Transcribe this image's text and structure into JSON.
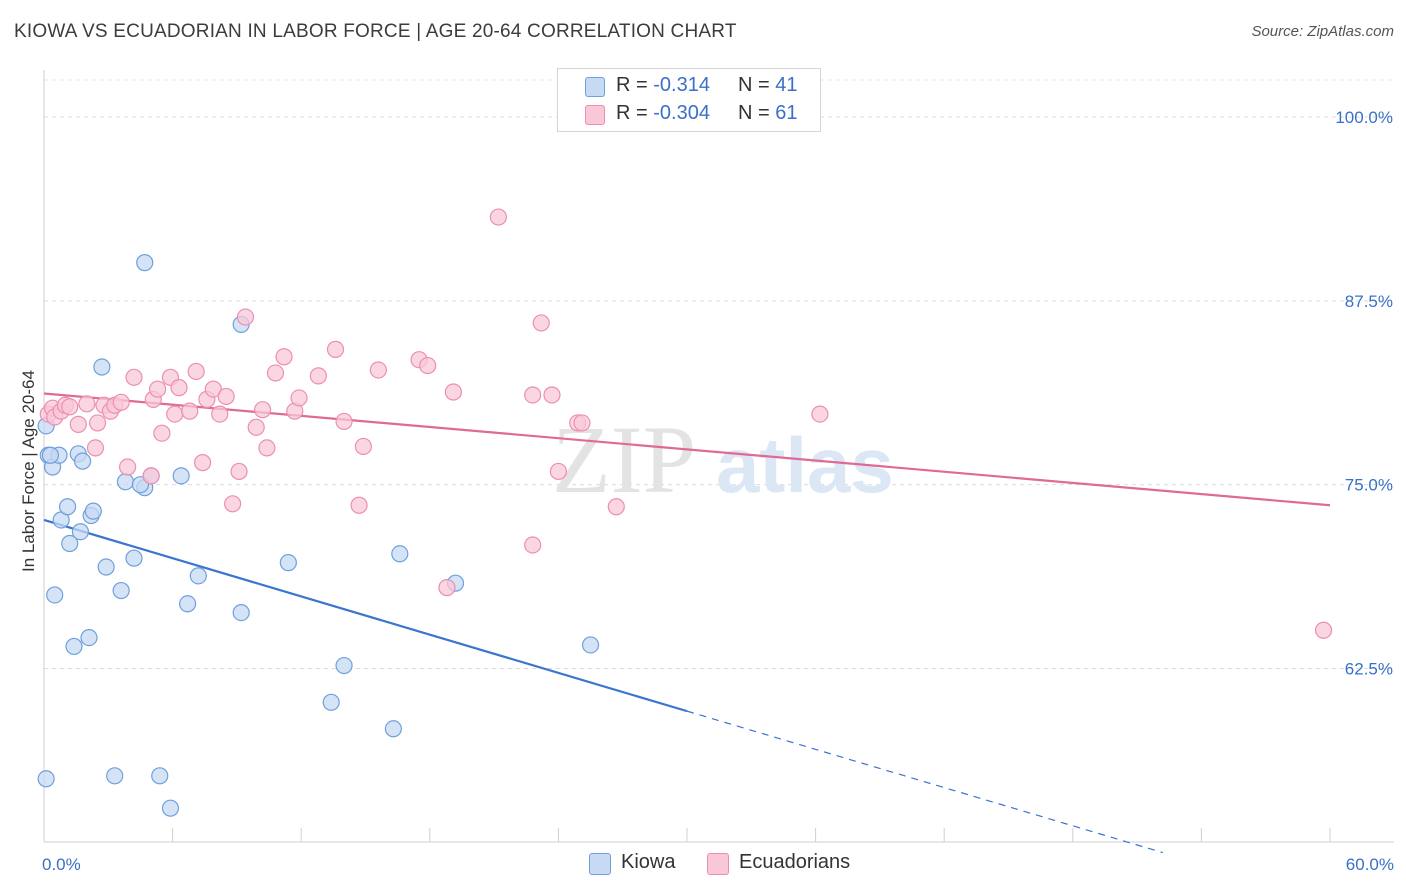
{
  "title": "KIOWA VS ECUADORIAN IN LABOR FORCE | AGE 20-64 CORRELATION CHART",
  "source": "Source: ZipAtlas.com",
  "watermark": {
    "zip": "ZIP",
    "atlas": "atlas"
  },
  "legend": {
    "r_label": "R =",
    "n_label": "N =",
    "kiowa": {
      "r": "-0.314",
      "n": "41"
    },
    "ecuadorians": {
      "r": "-0.304",
      "n": "61"
    }
  },
  "chart_data": {
    "type": "scatter",
    "title": "KIOWA VS ECUADORIAN IN LABOR FORCE | AGE 20-64 CORRELATION CHART",
    "ylabel": "In Labor Force | Age 20-64",
    "xlabel": "",
    "xlim": [
      0,
      60
    ],
    "ylim": [
      50.7,
      103.2
    ],
    "x_tick_labels": [
      {
        "value": 0,
        "label": "0.0%"
      },
      {
        "value": 60,
        "label": "60.0%"
      }
    ],
    "y_tick_labels": [
      {
        "value": 100,
        "label": "100.0%"
      },
      {
        "value": 87.5,
        "label": "87.5%"
      },
      {
        "value": 75,
        "label": "75.0%"
      },
      {
        "value": 62.5,
        "label": "62.5%"
      }
    ],
    "grid": true,
    "legend_position": "top-center",
    "series": [
      {
        "name": "Kiowa",
        "color": "#6fa0dc",
        "fill": "#c7daf3",
        "r": -0.314,
        "n": 41,
        "trend": {
          "x0": 0,
          "y0": 72.6,
          "x1": 30,
          "y1": 59.6,
          "dashed_to_x": 60
        },
        "points": [
          [
            0.1,
            79.0
          ],
          [
            0.2,
            77.0
          ],
          [
            0.4,
            76.2
          ],
          [
            0.5,
            67.5
          ],
          [
            0.7,
            77.0
          ],
          [
            0.8,
            72.6
          ],
          [
            1.1,
            73.5
          ],
          [
            1.2,
            71.0
          ],
          [
            1.4,
            64.0
          ],
          [
            1.6,
            77.1
          ],
          [
            1.7,
            71.8
          ],
          [
            1.8,
            76.6
          ],
          [
            2.1,
            64.6
          ],
          [
            2.2,
            72.9
          ],
          [
            2.3,
            73.2
          ],
          [
            2.7,
            83.0
          ],
          [
            2.9,
            69.4
          ],
          [
            3.3,
            55.2
          ],
          [
            3.6,
            67.8
          ],
          [
            3.8,
            75.2
          ],
          [
            4.2,
            70.0
          ],
          [
            4.7,
            74.8
          ],
          [
            4.7,
            90.1
          ],
          [
            5.0,
            75.6
          ],
          [
            5.4,
            55.2
          ],
          [
            5.9,
            53.0
          ],
          [
            6.4,
            75.6
          ],
          [
            6.7,
            66.9
          ],
          [
            7.2,
            68.8
          ],
          [
            9.2,
            66.3
          ],
          [
            9.2,
            85.9
          ],
          [
            11.4,
            69.7
          ],
          [
            13.4,
            60.2
          ],
          [
            14.0,
            62.7
          ],
          [
            16.3,
            58.4
          ],
          [
            16.6,
            70.3
          ],
          [
            19.2,
            68.3
          ],
          [
            25.5,
            64.1
          ],
          [
            0.1,
            55.0
          ],
          [
            4.5,
            75.0
          ],
          [
            0.3,
            77.0
          ]
        ]
      },
      {
        "name": "Ecuadorians",
        "color": "#ec8fae",
        "fill": "#f8c8d8",
        "r": -0.304,
        "n": 61,
        "trend": {
          "x0": 0,
          "y0": 81.2,
          "x1": 60,
          "y1": 73.6
        },
        "points": [
          [
            0.2,
            79.8
          ],
          [
            0.4,
            80.2
          ],
          [
            0.5,
            79.6
          ],
          [
            0.8,
            80.0
          ],
          [
            1.0,
            80.4
          ],
          [
            1.2,
            80.3
          ],
          [
            1.6,
            79.1
          ],
          [
            2.0,
            80.5
          ],
          [
            2.4,
            77.5
          ],
          [
            2.5,
            79.2
          ],
          [
            2.8,
            80.4
          ],
          [
            3.1,
            80.0
          ],
          [
            3.3,
            80.4
          ],
          [
            3.6,
            80.6
          ],
          [
            3.9,
            76.2
          ],
          [
            4.2,
            82.3
          ],
          [
            5.0,
            75.6
          ],
          [
            5.1,
            80.8
          ],
          [
            5.3,
            81.5
          ],
          [
            5.5,
            78.5
          ],
          [
            5.9,
            82.3
          ],
          [
            6.1,
            79.8
          ],
          [
            6.3,
            81.6
          ],
          [
            6.8,
            80.0
          ],
          [
            7.1,
            82.7
          ],
          [
            7.4,
            76.5
          ],
          [
            7.6,
            80.8
          ],
          [
            7.9,
            81.5
          ],
          [
            8.2,
            79.8
          ],
          [
            8.5,
            81.0
          ],
          [
            8.8,
            73.7
          ],
          [
            9.1,
            75.9
          ],
          [
            9.4,
            86.4
          ],
          [
            9.9,
            78.9
          ],
          [
            10.2,
            80.1
          ],
          [
            10.4,
            77.5
          ],
          [
            10.8,
            82.6
          ],
          [
            11.2,
            83.7
          ],
          [
            11.7,
            80.0
          ],
          [
            11.9,
            80.9
          ],
          [
            12.8,
            82.4
          ],
          [
            13.6,
            84.2
          ],
          [
            14.0,
            79.3
          ],
          [
            14.7,
            73.6
          ],
          [
            14.9,
            77.6
          ],
          [
            15.6,
            82.8
          ],
          [
            17.5,
            83.5
          ],
          [
            17.9,
            83.1
          ],
          [
            18.8,
            68.0
          ],
          [
            19.1,
            81.3
          ],
          [
            21.2,
            93.2
          ],
          [
            22.8,
            70.9
          ],
          [
            22.8,
            81.1
          ],
          [
            23.2,
            86.0
          ],
          [
            23.7,
            81.1
          ],
          [
            24.0,
            75.9
          ],
          [
            24.9,
            79.2
          ],
          [
            25.1,
            79.2
          ],
          [
            26.7,
            73.5
          ],
          [
            36.2,
            79.8
          ],
          [
            59.7,
            65.1
          ]
        ]
      }
    ]
  }
}
